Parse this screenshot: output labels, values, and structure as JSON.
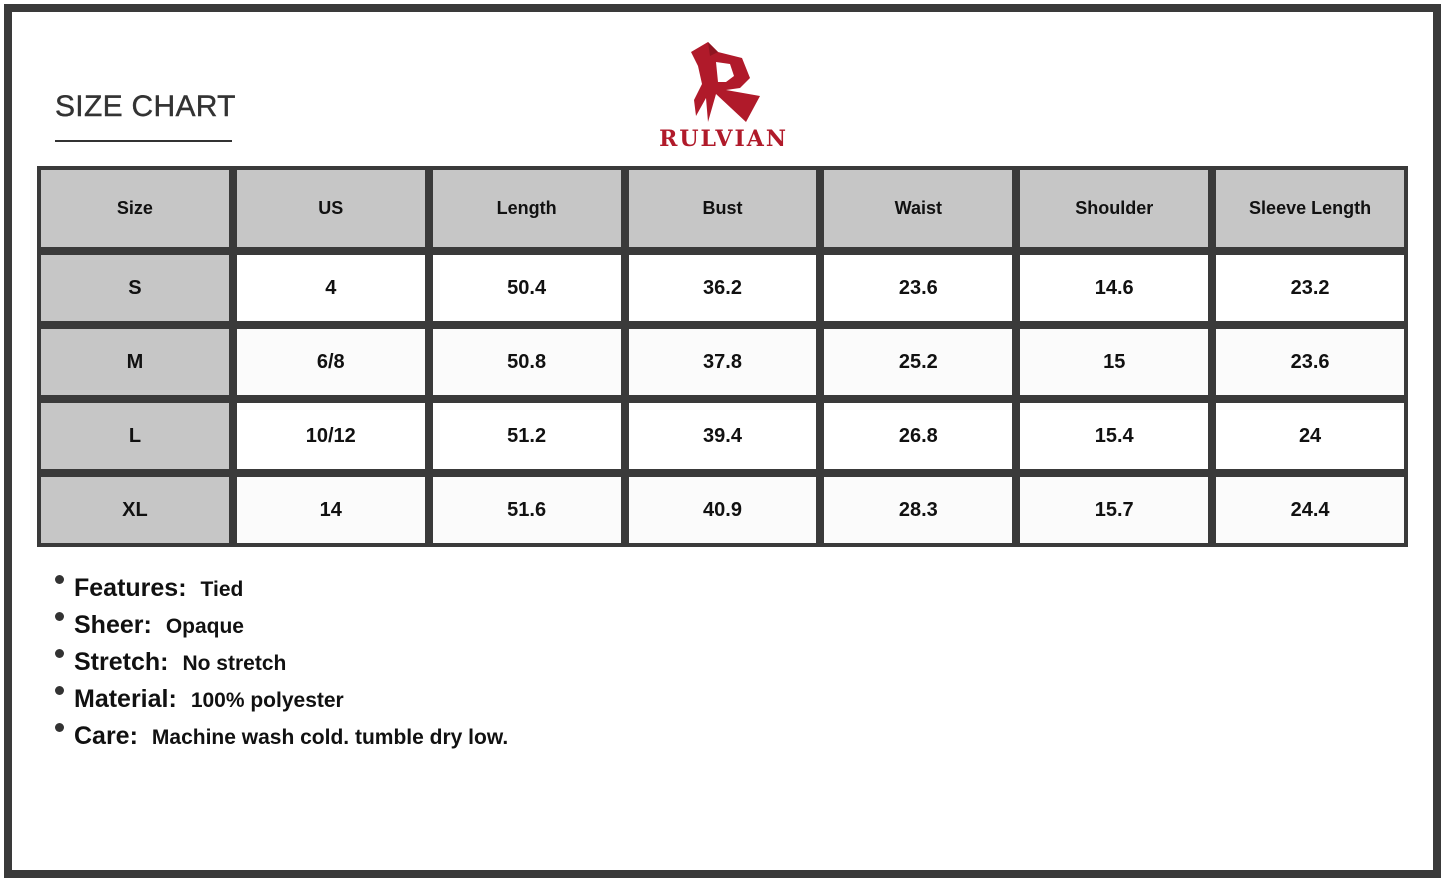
{
  "title": "SIZE CHART",
  "brand": {
    "name": "RULVIAN",
    "color": "#b01a2a"
  },
  "table": {
    "headers": [
      "Size",
      "US",
      "Length",
      "Bust",
      "Waist",
      "Shoulder",
      "Sleeve Length"
    ],
    "rows": [
      [
        "S",
        "4",
        "50.4",
        "36.2",
        "23.6",
        "14.6",
        "23.2"
      ],
      [
        "M",
        "6/8",
        "50.8",
        "37.8",
        "25.2",
        "15",
        "23.6"
      ],
      [
        "L",
        "10/12",
        "51.2",
        "39.4",
        "26.8",
        "15.4",
        "24"
      ],
      [
        "XL",
        "14",
        "51.6",
        "40.9",
        "28.3",
        "15.7",
        "24.4"
      ]
    ]
  },
  "specs": [
    {
      "label": "Features:",
      "value": "Tied"
    },
    {
      "label": "Sheer:",
      "value": "Opaque"
    },
    {
      "label": "Stretch:",
      "value": "No stretch"
    },
    {
      "label": "Material:",
      "value": "100% polyester"
    },
    {
      "label": "Care:",
      "value": "Machine wash cold. tumble dry low."
    }
  ]
}
